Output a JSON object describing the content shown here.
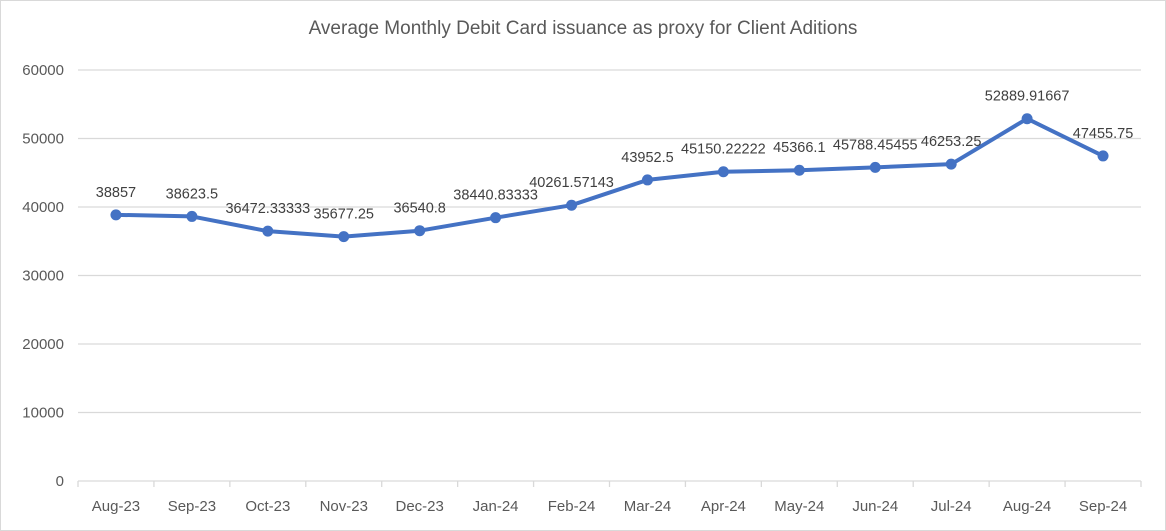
{
  "chart_data": {
    "type": "line",
    "title": "Average Monthly Debit Card issuance as proxy for Client Aditions",
    "xlabel": "",
    "ylabel": "",
    "ylim": [
      0,
      60000
    ],
    "yticks": [
      "0",
      "10000",
      "20000",
      "30000",
      "40000",
      "50000",
      "60000"
    ],
    "grid": true,
    "legend": "none",
    "categories": [
      "Aug-23",
      "Sep-23",
      "Oct-23",
      "Nov-23",
      "Dec-23",
      "Jan-24",
      "Feb-24",
      "Mar-24",
      "Apr-24",
      "May-24",
      "Jun-24",
      "Jul-24",
      "Aug-24",
      "Sep-24"
    ],
    "series": [
      {
        "name": "Average Monthly Debit Card issuance",
        "color": "#4472c4",
        "values": [
          38857,
          38623.5,
          36472.33333,
          35677.25,
          36540.8,
          38440.83333,
          40261.57143,
          43952.5,
          45150.22222,
          45366.1,
          45788.45455,
          46253.25,
          52889.91667,
          47455.75
        ],
        "labels": [
          "38857",
          "38623.5",
          "36472.33333",
          "35677.25",
          "36540.8",
          "38440.83333",
          "40261.57143",
          "43952.5",
          "45150.22222",
          "45366.1",
          "45788.45455",
          "46253.25",
          "52889.91667",
          "47455.75"
        ]
      }
    ]
  }
}
